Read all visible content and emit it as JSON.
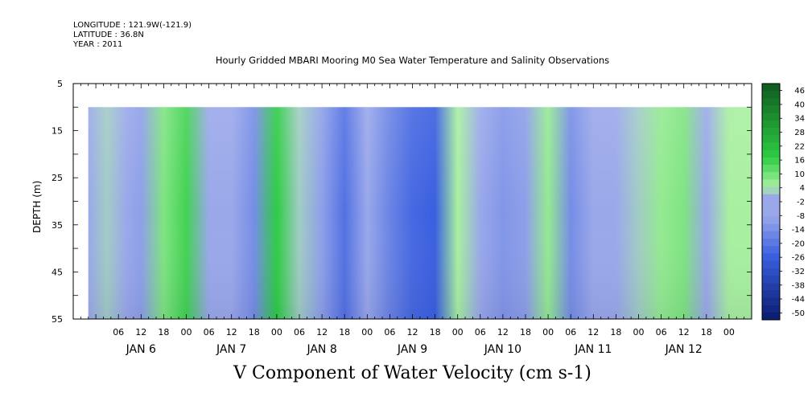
{
  "header": {
    "longitude": "LONGITUDE : 121.9W(-121.9)",
    "latitude": "LATITUDE : 36.8N",
    "year": "YEAR : 2011"
  },
  "title": "Hourly Gridded MBARI Mooring M0 Sea Water Temperature and Salinity Observations",
  "bottom_title": "V Component of Water Velocity (cm s-1)",
  "chart_data": {
    "type": "heatmap",
    "ylabel": "DEPTH (m)",
    "y_ticks": [
      "5",
      "15",
      "25",
      "35",
      "45",
      "55"
    ],
    "ylim": [
      5,
      55
    ],
    "y_data_range": [
      10,
      55
    ],
    "x_hour_labels": [
      "06",
      "12",
      "18",
      "00"
    ],
    "x_day_labels": [
      "JAN 6",
      "JAN 7",
      "JAN 8",
      "JAN 9",
      "JAN 10",
      "JAN 11",
      "JAN 12"
    ],
    "colorbar_labels": [
      "46",
      "40",
      "34",
      "28",
      "22",
      "16",
      "10",
      "4",
      "-2",
      "-8",
      "-14",
      "-20",
      "-26",
      "-32",
      "-38",
      "-44",
      "-50"
    ],
    "colorbar_range": [
      -50,
      46
    ],
    "colors": {
      "deep_blue": "#0a1a6e",
      "blue": "#3a5fe0",
      "periwinkle": "#9aa8ea",
      "light_green": "#a8f0a0",
      "green": "#2ecc44",
      "dark_green": "#0f5a1f"
    },
    "velocity_profile": [
      {
        "time": "JAN 5 22:00",
        "v": 0
      },
      {
        "time": "JAN 6 03:00",
        "v": 2
      },
      {
        "time": "JAN 6 08:00",
        "v": -4
      },
      {
        "time": "JAN 6 12:00",
        "v": -10
      },
      {
        "time": "JAN 6 18:00",
        "v": 8
      },
      {
        "time": "JAN 7 00:00",
        "v": 14
      },
      {
        "time": "JAN 7 06:00",
        "v": -8
      },
      {
        "time": "JAN 7 12:00",
        "v": -6
      },
      {
        "time": "JAN 7 18:00",
        "v": -14
      },
      {
        "time": "JAN 8 00:00",
        "v": 16
      },
      {
        "time": "JAN 8 06:00",
        "v": 2
      },
      {
        "time": "JAN 8 12:00",
        "v": -10
      },
      {
        "time": "JAN 8 18:00",
        "v": -20
      },
      {
        "time": "JAN 9 00:00",
        "v": -4
      },
      {
        "time": "JAN 9 06:00",
        "v": -16
      },
      {
        "time": "JAN 9 12:00",
        "v": -22
      },
      {
        "time": "JAN 9 18:00",
        "v": -24
      },
      {
        "time": "JAN 10 00:00",
        "v": 4
      },
      {
        "time": "JAN 10 06:00",
        "v": -6
      },
      {
        "time": "JAN 10 12:00",
        "v": -12
      },
      {
        "time": "JAN 10 18:00",
        "v": -10
      },
      {
        "time": "JAN 11 00:00",
        "v": 6
      },
      {
        "time": "JAN 11 06:00",
        "v": -14
      },
      {
        "time": "JAN 11 12:00",
        "v": -6
      },
      {
        "time": "JAN 11 18:00",
        "v": -8
      },
      {
        "time": "JAN 12 00:00",
        "v": 2
      },
      {
        "time": "JAN 12 06:00",
        "v": 6
      },
      {
        "time": "JAN 12 12:00",
        "v": 8
      },
      {
        "time": "JAN 12 18:00",
        "v": -4
      },
      {
        "time": "JAN 13 00:00",
        "v": 4
      }
    ]
  }
}
